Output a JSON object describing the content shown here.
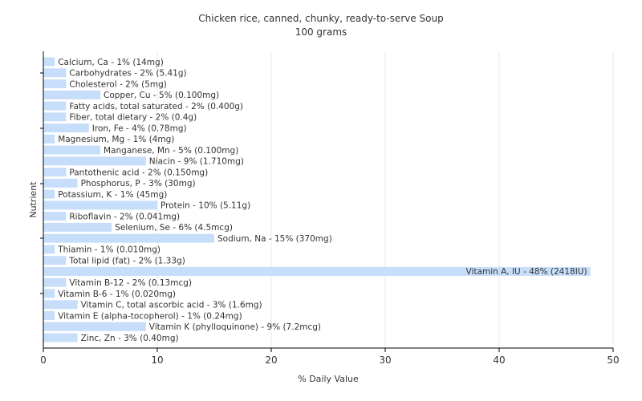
{
  "chart_data": {
    "type": "bar",
    "orientation": "horizontal",
    "title": "Chicken rice, canned, chunky, ready-to-serve Soup",
    "subtitle": "100 grams",
    "xlabel": "% Daily Value",
    "ylabel": "Nutrient",
    "xlim": [
      0,
      50
    ],
    "xticks": [
      0,
      10,
      20,
      30,
      40,
      50
    ],
    "grid": true,
    "legend": "none",
    "bar_color": "#c6defa",
    "categories": [
      "Calcium, Ca",
      "Carbohydrates",
      "Cholesterol",
      "Copper, Cu",
      "Fatty acids, total saturated",
      "Fiber, total dietary",
      "Iron, Fe",
      "Magnesium, Mg",
      "Manganese, Mn",
      "Niacin",
      "Pantothenic acid",
      "Phosphorus, P",
      "Potassium, K",
      "Protein",
      "Riboflavin",
      "Selenium, Se",
      "Sodium, Na",
      "Thiamin",
      "Total lipid (fat)",
      "Vitamin A, IU",
      "Vitamin B-12",
      "Vitamin B-6",
      "Vitamin C, total ascorbic acid",
      "Vitamin E (alpha-tocopherol)",
      "Vitamin K (phylloquinone)",
      "Zinc, Zn"
    ],
    "values": [
      1,
      2,
      2,
      5,
      2,
      2,
      4,
      1,
      5,
      9,
      2,
      3,
      1,
      10,
      2,
      6,
      15,
      1,
      2,
      48,
      2,
      1,
      3,
      1,
      9,
      3
    ],
    "labels": [
      "Calcium, Ca - 1% (14mg)",
      "Carbohydrates - 2% (5.41g)",
      "Cholesterol - 2% (5mg)",
      "Copper, Cu - 5% (0.100mg)",
      "Fatty acids, total saturated - 2% (0.400g)",
      "Fiber, total dietary - 2% (0.4g)",
      "Iron, Fe - 4% (0.78mg)",
      "Magnesium, Mg - 1% (4mg)",
      "Manganese, Mn - 5% (0.100mg)",
      "Niacin - 9% (1.710mg)",
      "Pantothenic acid - 2% (0.150mg)",
      "Phosphorus, P - 3% (30mg)",
      "Potassium, K - 1% (45mg)",
      "Protein - 10% (5.11g)",
      "Riboflavin - 2% (0.041mg)",
      "Selenium, Se - 6% (4.5mcg)",
      "Sodium, Na - 15% (370mg)",
      "Thiamin - 1% (0.010mg)",
      "Total lipid (fat) - 2% (1.33g)",
      "Vitamin A, IU - 48% (2418IU)",
      "Vitamin B-12 - 2% (0.13mcg)",
      "Vitamin B-6 - 1% (0.020mg)",
      "Vitamin C, total ascorbic acid - 3% (1.6mg)",
      "Vitamin E (alpha-tocopherol) - 1% (0.24mg)",
      "Vitamin K (phylloquinone) - 9% (7.2mcg)",
      "Zinc, Zn - 3% (0.40mg)"
    ]
  }
}
